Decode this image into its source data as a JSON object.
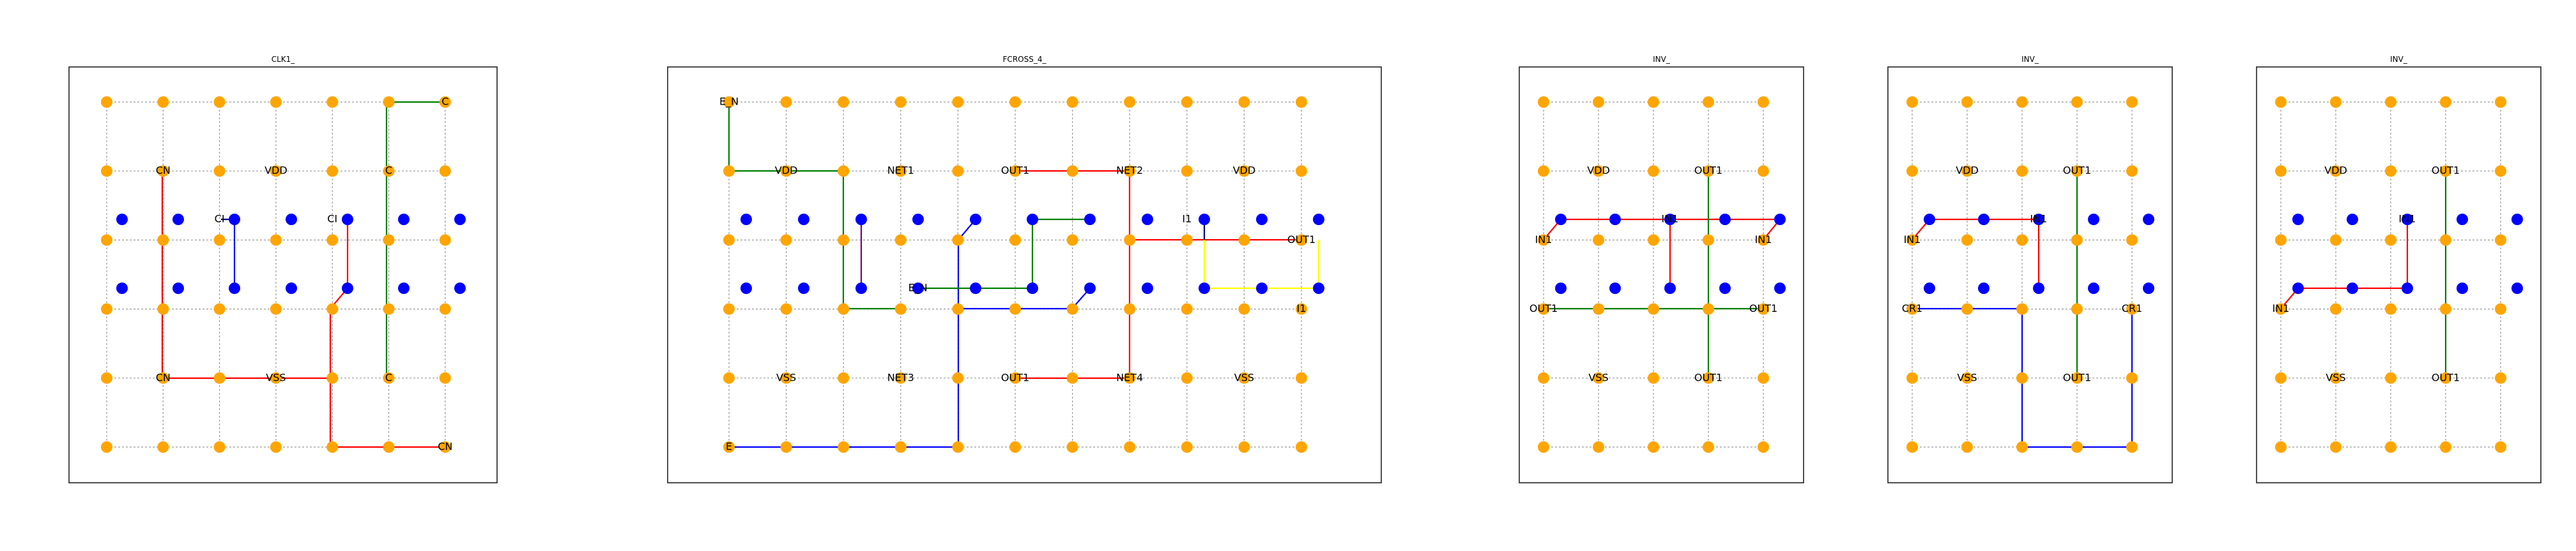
{
  "colors": {
    "background": "#ffffff",
    "grid": "#999999",
    "node_orange": "#FFA500",
    "node_blue": "#0000FF",
    "route_red": "#FF0000",
    "route_green": "#008000",
    "route_blue": "#0000FF",
    "route_purple": "#800080",
    "route_yellow": "#FFFF00",
    "route_navy": "#000080"
  },
  "panels": [
    {
      "title": "CLK1_",
      "labels": [
        {
          "text": "C",
          "col": 6,
          "row": 0
        },
        {
          "text": "CN",
          "col": 1,
          "row": 1
        },
        {
          "text": "VDD",
          "col": 3,
          "row": 1
        },
        {
          "text": "C",
          "col": 5,
          "row": 1
        },
        {
          "text": "CI",
          "col": 2,
          "row": 1.7
        },
        {
          "text": "CI",
          "col": 4,
          "row": 1.7
        },
        {
          "text": "CN",
          "col": 1,
          "row": 4
        },
        {
          "text": "VSS",
          "col": 3,
          "row": 4
        },
        {
          "text": "C",
          "col": 5,
          "row": 4
        },
        {
          "text": "CN",
          "col": 6,
          "row": 5
        }
      ]
    },
    {
      "title": "FCROSS_4_",
      "labels": [
        {
          "text": "E_N",
          "col": 0,
          "row": 0
        },
        {
          "text": "VDD",
          "col": 1,
          "row": 1
        },
        {
          "text": "NET1",
          "col": 3,
          "row": 1
        },
        {
          "text": "OUT1",
          "col": 5,
          "row": 1
        },
        {
          "text": "NET2",
          "col": 7,
          "row": 1
        },
        {
          "text": "VDD",
          "col": 9,
          "row": 1
        },
        {
          "text": "I1",
          "col": 8,
          "row": 1.7
        },
        {
          "text": "OUT1",
          "col": 10,
          "row": 2
        },
        {
          "text": "E_N",
          "col": 3.3,
          "row": 2.7
        },
        {
          "text": "I1",
          "col": 10,
          "row": 3
        },
        {
          "text": "VSS",
          "col": 1,
          "row": 4
        },
        {
          "text": "NET3",
          "col": 3,
          "row": 4
        },
        {
          "text": "OUT1",
          "col": 5,
          "row": 4
        },
        {
          "text": "NET4",
          "col": 7,
          "row": 4
        },
        {
          "text": "VSS",
          "col": 9,
          "row": 4
        },
        {
          "text": "E",
          "col": 0,
          "row": 5
        }
      ]
    },
    {
      "title": "INV_",
      "labels": [
        {
          "text": "VDD",
          "col": 1,
          "row": 1
        },
        {
          "text": "OUT1",
          "col": 3,
          "row": 1
        },
        {
          "text": "IN1",
          "col": 0,
          "row": 2
        },
        {
          "text": "IN1",
          "col": 2.3,
          "row": 1.7
        },
        {
          "text": "IN1",
          "col": 4,
          "row": 2
        },
        {
          "text": "OUT1",
          "col": 0,
          "row": 3
        },
        {
          "text": "OUT1",
          "col": 4,
          "row": 3
        },
        {
          "text": "VSS",
          "col": 1,
          "row": 4
        },
        {
          "text": "OUT1",
          "col": 3,
          "row": 4
        }
      ]
    },
    {
      "title": "INV_",
      "labels": [
        {
          "text": "VDD",
          "col": 1,
          "row": 1
        },
        {
          "text": "OUT1",
          "col": 3,
          "row": 1
        },
        {
          "text": "IN1",
          "col": 0,
          "row": 2
        },
        {
          "text": "IN1",
          "col": 2.3,
          "row": 1.7
        },
        {
          "text": "CR1",
          "col": 0,
          "row": 3
        },
        {
          "text": "CR1",
          "col": 4,
          "row": 3
        },
        {
          "text": "VSS",
          "col": 1,
          "row": 4
        },
        {
          "text": "OUT1",
          "col": 3,
          "row": 4
        }
      ]
    },
    {
      "title": "INV_",
      "labels": [
        {
          "text": "VDD",
          "col": 1,
          "row": 1
        },
        {
          "text": "OUT1",
          "col": 3,
          "row": 1
        },
        {
          "text": "IN1",
          "col": 2.3,
          "row": 1.7
        },
        {
          "text": "IN1",
          "col": 0,
          "row": 3
        },
        {
          "text": "VSS",
          "col": 1,
          "row": 4
        },
        {
          "text": "OUT1",
          "col": 3,
          "row": 4
        }
      ]
    }
  ]
}
